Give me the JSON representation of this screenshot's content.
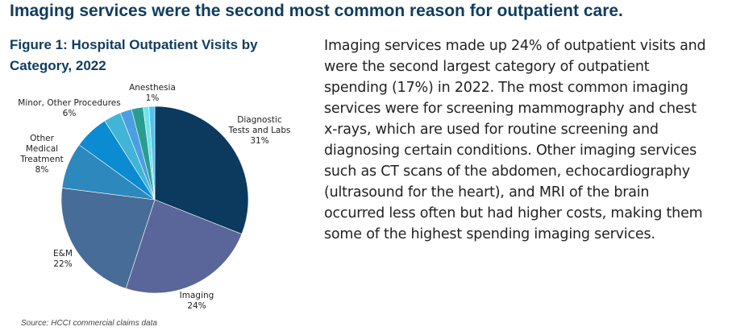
{
  "headline": "Imaging services were the second most common reason for outpatient care.",
  "chart_data": {
    "type": "pie",
    "title": "Figure 1: Hospital Outpatient Visits by Category, 2022",
    "slices": [
      {
        "name": "Diagnostic Tests and Labs",
        "label_lines": [
          "Diagnostic",
          "Tests and Labs",
          "31%"
        ],
        "value": 31,
        "color": "#0b3a5e"
      },
      {
        "name": "Imaging",
        "label_lines": [
          "Imaging",
          "24%"
        ],
        "value": 24,
        "color": "#5a6599"
      },
      {
        "name": "E&M",
        "label_lines": [
          "E&M",
          "22%"
        ],
        "value": 22,
        "color": "#486c98"
      },
      {
        "name": "Other Medical Treatment",
        "label_lines": [
          "Other",
          "Medical",
          "Treatment",
          "8%"
        ],
        "value": 8,
        "color": "#2d88bd"
      },
      {
        "name": "Minor, Other Procedures",
        "label_lines": [
          "Minor, Other Procedures",
          "6%"
        ],
        "value": 6,
        "color": "#0a8bd2"
      },
      {
        "name": "",
        "label_lines": [],
        "value": 3,
        "color": "#40b5d6"
      },
      {
        "name": "",
        "label_lines": [],
        "value": 2,
        "color": "#4a9fe0"
      },
      {
        "name": "",
        "label_lines": [],
        "value": 2,
        "color": "#2a9d90"
      },
      {
        "name": "Anesthesia",
        "label_lines": [
          "Anesthesia",
          "1%"
        ],
        "value": 1,
        "color": "#6fe3ea"
      },
      {
        "name": "",
        "label_lines": [],
        "value": 1,
        "color": "#4fc3f0"
      }
    ],
    "start_angle": "12 o'clock",
    "direction": "clockwise"
  },
  "body_text": "Imaging services made up 24% of outpatient visits and were the second largest category of outpatient spending (17%) in 2022. The most common imaging services were for screening mammography and chest x-rays, which are used for routine screening and diagnosing certain conditions. Other imaging services such as CT scans of the abdomen, echocardiography (ultrasound for the heart), and MRI of the brain occurred less often but had higher costs, making them some of the highest spending imaging services.",
  "source": "Source: HCCI commercial claims data"
}
